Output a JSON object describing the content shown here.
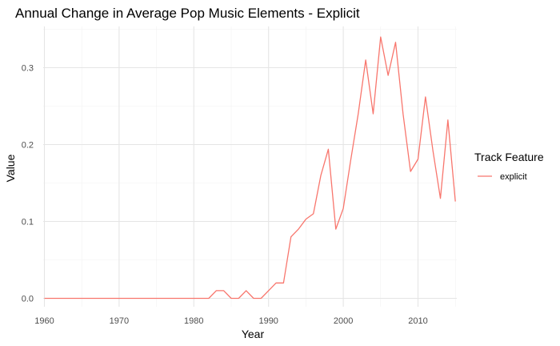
{
  "chart_data": {
    "type": "line",
    "title": "Annual Change in Average Pop Music Elements - Explicit",
    "xlabel": "Year",
    "ylabel": "Value",
    "xlim": [
      1960,
      2015
    ],
    "ylim": [
      0,
      0.34
    ],
    "x_ticks": [
      1960,
      1970,
      1980,
      1990,
      2000,
      2010
    ],
    "x_tick_labels": [
      "1960",
      "1970",
      "1980",
      "1990",
      "2000",
      "2010"
    ],
    "y_ticks": [
      0,
      0.1,
      0.2,
      0.3
    ],
    "y_tick_labels": [
      "0.0",
      "0.1",
      "0.2",
      "0.3"
    ],
    "grid": true,
    "legend": {
      "title": "Track Feature",
      "position": "right"
    },
    "series": [
      {
        "name": "explicit",
        "color": "#F8766D",
        "x": [
          1960,
          1961,
          1962,
          1963,
          1964,
          1965,
          1966,
          1967,
          1968,
          1969,
          1970,
          1971,
          1972,
          1973,
          1974,
          1975,
          1976,
          1977,
          1978,
          1979,
          1980,
          1981,
          1982,
          1983,
          1984,
          1985,
          1986,
          1987,
          1988,
          1989,
          1990,
          1991,
          1992,
          1993,
          1994,
          1995,
          1996,
          1997,
          1998,
          1999,
          2000,
          2001,
          2002,
          2003,
          2004,
          2005,
          2006,
          2007,
          2008,
          2009,
          2010,
          2011,
          2012,
          2013,
          2014,
          2015
        ],
        "y": [
          0,
          0,
          0,
          0,
          0,
          0,
          0,
          0,
          0,
          0,
          0,
          0,
          0,
          0,
          0,
          0,
          0,
          0,
          0,
          0,
          0,
          0,
          0,
          0.01,
          0.01,
          0,
          0,
          0.01,
          0,
          0,
          0.01,
          0.02,
          0.02,
          0.08,
          0.09,
          0.103,
          0.11,
          0.16,
          0.194,
          0.09,
          0.117,
          0.18,
          0.24,
          0.31,
          0.24,
          0.34,
          0.29,
          0.333,
          0.24,
          0.165,
          0.181,
          0.262,
          0.192,
          0.13,
          0.232,
          0.126
        ]
      }
    ]
  }
}
